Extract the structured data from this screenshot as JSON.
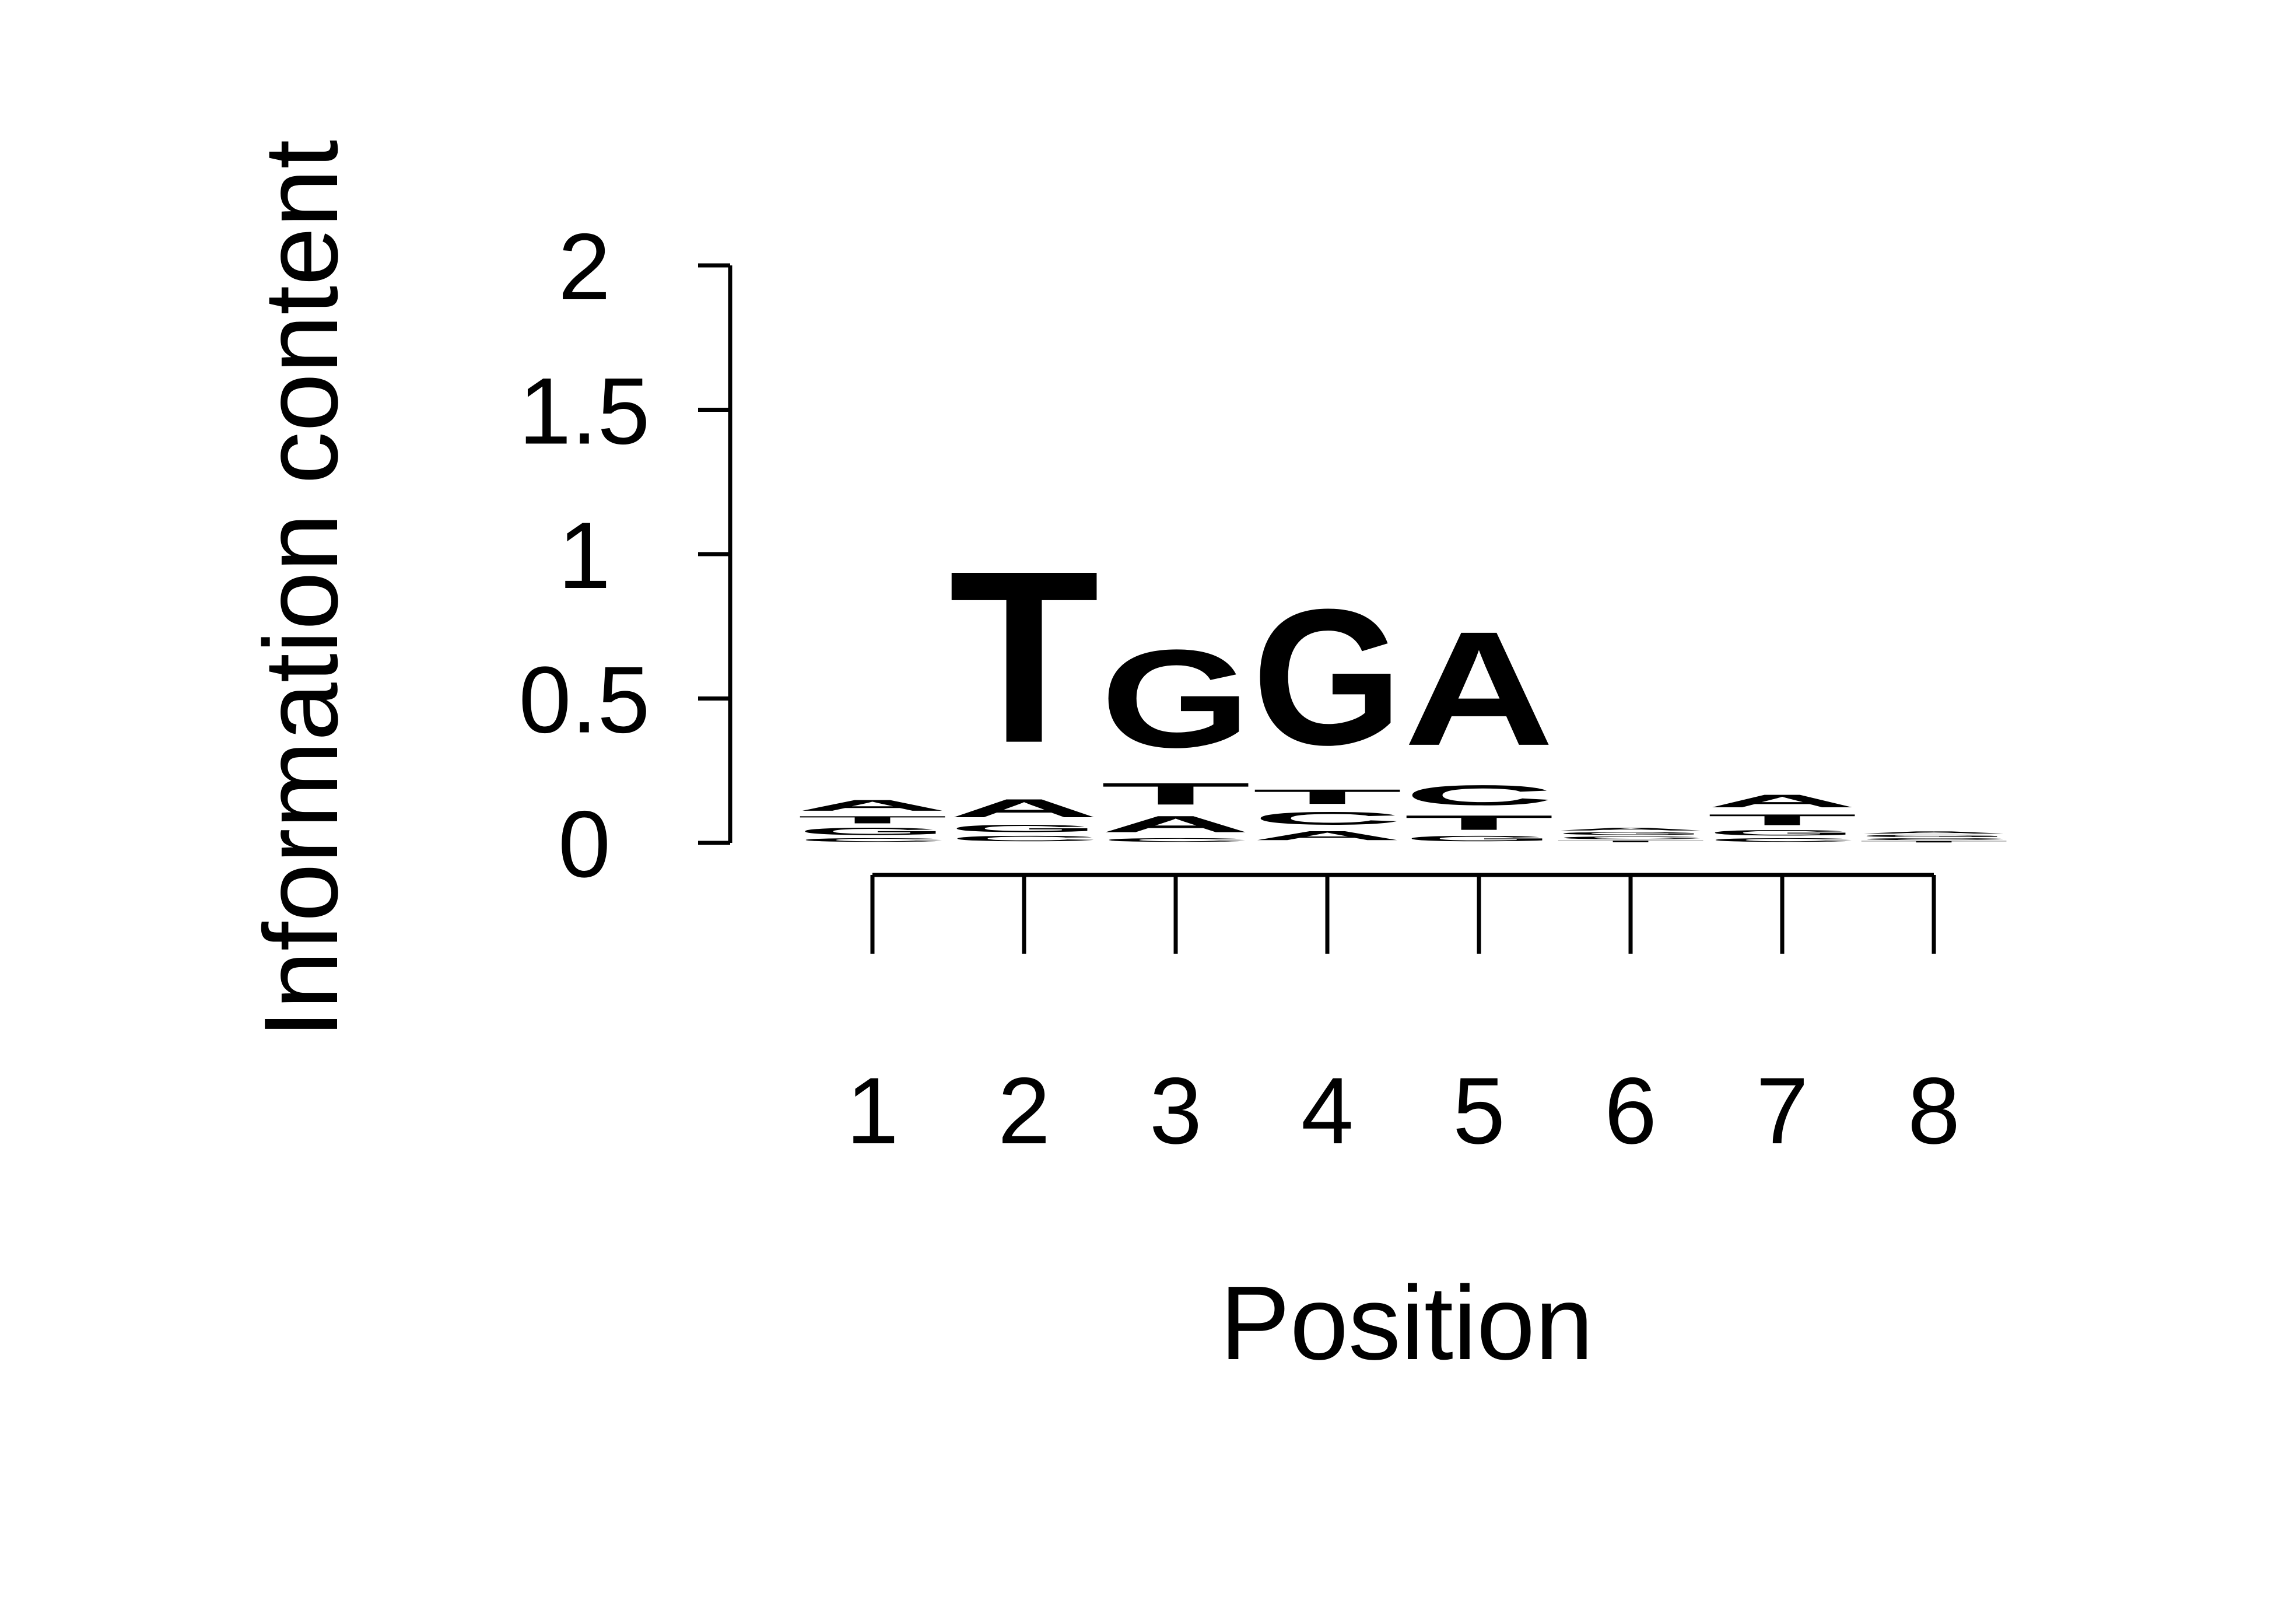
{
  "chart_data": {
    "type": "sequence-logo",
    "title": "",
    "xlabel": "Position",
    "ylabel": "Information content",
    "ylim": [
      0,
      2
    ],
    "y_ticks": [
      "0",
      "0.5",
      "1",
      "1.5",
      "2"
    ],
    "y_tick_values": [
      0,
      0.5,
      1,
      1.5,
      2
    ],
    "x_ticks": [
      "1",
      "2",
      "3",
      "4",
      "5",
      "6",
      "7",
      "8"
    ],
    "colors": {
      "A": "#00ff00",
      "C": "#0000ff",
      "G": "#ffa500",
      "T": "#ff0000"
    },
    "positions": [
      {
        "position": "1",
        "stack": [
          {
            "letter": "C",
            "height": 0.02
          },
          {
            "letter": "G",
            "height": 0.04
          },
          {
            "letter": "T",
            "height": 0.04
          },
          {
            "letter": "A",
            "height": 0.06
          }
        ]
      },
      {
        "position": "2",
        "stack": [
          {
            "letter": "C",
            "height": 0.03
          },
          {
            "letter": "G",
            "height": 0.04
          },
          {
            "letter": "A",
            "height": 0.1
          },
          {
            "letter": "T",
            "height": 0.95
          }
        ]
      },
      {
        "position": "3",
        "stack": [
          {
            "letter": "C",
            "height": 0.02
          },
          {
            "letter": "A",
            "height": 0.09
          },
          {
            "letter": "T",
            "height": 0.12
          },
          {
            "letter": "G",
            "height": 0.54
          }
        ]
      },
      {
        "position": "4",
        "stack": [
          {
            "letter": "A",
            "height": 0.05
          },
          {
            "letter": "C",
            "height": 0.07
          },
          {
            "letter": "T",
            "height": 0.08
          },
          {
            "letter": "G",
            "height": 0.75
          }
        ]
      },
      {
        "position": "5",
        "stack": [
          {
            "letter": "G",
            "height": 0.03
          },
          {
            "letter": "T",
            "height": 0.08
          },
          {
            "letter": "C",
            "height": 0.11
          },
          {
            "letter": "A",
            "height": 0.63
          }
        ]
      },
      {
        "position": "6",
        "stack": [
          {
            "letter": "T",
            "height": 0.01
          },
          {
            "letter": "C",
            "height": 0.015
          },
          {
            "letter": "G",
            "height": 0.015
          },
          {
            "letter": "A",
            "height": 0.015
          }
        ]
      },
      {
        "position": "7",
        "stack": [
          {
            "letter": "C",
            "height": 0.02
          },
          {
            "letter": "G",
            "height": 0.03
          },
          {
            "letter": "T",
            "height": 0.06
          },
          {
            "letter": "A",
            "height": 0.07
          }
        ]
      },
      {
        "position": "8",
        "stack": [
          {
            "letter": "T",
            "height": 0.008
          },
          {
            "letter": "C",
            "height": 0.01
          },
          {
            "letter": "G",
            "height": 0.012
          },
          {
            "letter": "A",
            "height": 0.012
          }
        ]
      }
    ]
  }
}
